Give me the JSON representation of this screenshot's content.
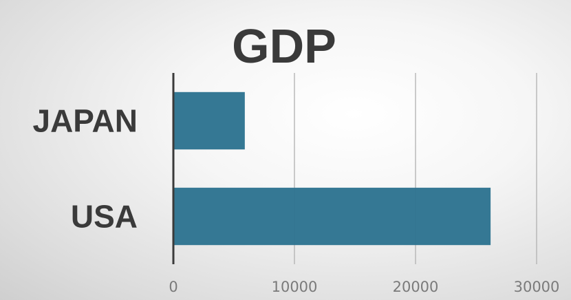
{
  "chart_data": {
    "type": "bar",
    "orientation": "horizontal",
    "title": "GDP",
    "categories": [
      "JAPAN",
      "USA"
    ],
    "values": [
      5900,
      26200
    ],
    "xlim": [
      0,
      30000
    ],
    "xticks": [
      "0",
      "10000",
      "20000",
      "30000"
    ],
    "grid": true,
    "colors": {
      "bar": "#2e7491",
      "text": "#3a3a3a",
      "tick": "#7a7a7a"
    }
  }
}
